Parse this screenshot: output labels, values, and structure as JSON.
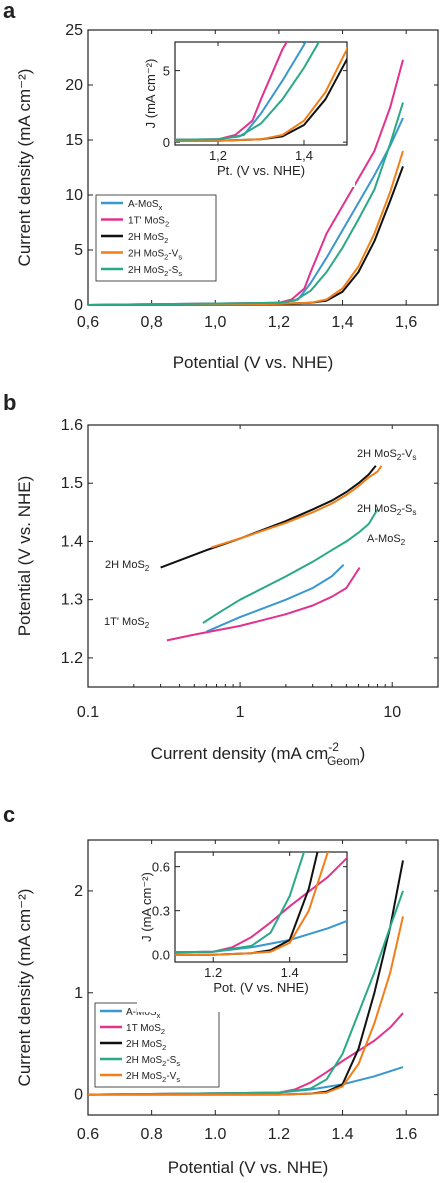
{
  "colors": {
    "A-MoSx": "#3a97cf",
    "1T-MoS2": "#e0338e",
    "2H-MoS2": "#111111",
    "2H-MoS2-Vs": "#f07f1a",
    "2H-MoS2-Ss": "#2aa987"
  },
  "chart_data": [
    {
      "id": "a",
      "type": "line",
      "panel_label": "a",
      "xlabel": "Potential (V vs. NHE)",
      "ylabel": "Current density (mA cm⁻²)",
      "xlim": [
        0.6,
        1.7
      ],
      "ylim": [
        0,
        25
      ],
      "xticks": [
        "0,6",
        "0,8",
        "1,0",
        "1,2",
        "1,4",
        "1,6"
      ],
      "yticks": [
        "0",
        "5",
        "10",
        "15",
        "20",
        "25"
      ],
      "legend_position": "lower-left",
      "series": [
        {
          "name": "A-MoSx",
          "color_key": "A-MoSx",
          "x": [
            0.6,
            1.2,
            1.26,
            1.3,
            1.35,
            1.4,
            1.45,
            1.5,
            1.55,
            1.59
          ],
          "y": [
            0,
            0.2,
            0.5,
            2.0,
            4.3,
            6.8,
            9.3,
            11.8,
            14.5,
            17
          ]
        },
        {
          "name": "1T' MoS2",
          "color_key": "1T-MoS2",
          "x": [
            0.6,
            1.2,
            1.24,
            1.28,
            1.3,
            1.35,
            1.4,
            1.45,
            1.5,
            1.55,
            1.59
          ],
          "y": [
            0,
            0.2,
            0.5,
            1.5,
            3.0,
            6.5,
            9.0,
            11.5,
            14.0,
            18.0,
            22.3
          ]
        },
        {
          "name": "2H MoS2",
          "color_key": "2H-MoS2",
          "x": [
            0.6,
            1.2,
            1.3,
            1.35,
            1.4,
            1.45,
            1.5,
            1.55,
            1.59
          ],
          "y": [
            0,
            0.1,
            0.2,
            0.4,
            1.2,
            3.0,
            5.8,
            9.5,
            12.6
          ]
        },
        {
          "name": "2H MoS2-Vs",
          "color_key": "2H-MoS2-Vs",
          "x": [
            0.6,
            1.2,
            1.3,
            1.35,
            1.4,
            1.45,
            1.5,
            1.55,
            1.59
          ],
          "y": [
            0,
            0.1,
            0.2,
            0.5,
            1.5,
            3.5,
            6.5,
            10.3,
            14.0
          ]
        },
        {
          "name": "2H MoS2-Ss",
          "color_key": "2H-MoS2-Ss",
          "x": [
            0.6,
            1.2,
            1.25,
            1.3,
            1.35,
            1.4,
            1.45,
            1.5,
            1.55,
            1.59
          ],
          "y": [
            0,
            0.2,
            0.4,
            1.3,
            3.0,
            5.2,
            7.8,
            10.5,
            14.7,
            18.4
          ]
        }
      ],
      "inset": {
        "xlabel": "Pt. (V vs. NHE)",
        "ylabel": "J (mA cm⁻²)",
        "xlim": [
          1.1,
          1.5
        ],
        "ylim": [
          -0.2,
          7
        ],
        "xticks": [
          "1,2",
          "1,4"
        ],
        "yticks": [
          "0",
          "5"
        ]
      }
    },
    {
      "id": "b",
      "type": "line",
      "panel_label": "b",
      "xlabel": "Current density (mA cm",
      "xlabel_sup": "-2",
      "xlabel_sub": "Geom",
      "xlabel_end": ")",
      "ylabel": "Potential (V vs. NHE)",
      "xscale": "log",
      "xlim": [
        0.1,
        20
      ],
      "ylim": [
        1.15,
        1.6
      ],
      "xticks": [
        "0.1",
        "1",
        "10"
      ],
      "yticks": [
        "1.2",
        "1.3",
        "1.4",
        "1.5",
        "1.6"
      ],
      "annotations": [
        "2H MoS2-VS",
        "2H MoS2-SS",
        "A-MoS2",
        "2H MoS2",
        "1T' MoS2"
      ],
      "series": [
        {
          "name": "2H MoS2",
          "color_key": "2H-MoS2",
          "x": [
            0.3,
            0.6,
            1,
            2,
            3,
            4,
            5,
            6,
            7,
            7.8
          ],
          "y": [
            1.355,
            1.385,
            1.405,
            1.435,
            1.455,
            1.47,
            1.485,
            1.5,
            1.515,
            1.53
          ]
        },
        {
          "name": "2H MoS2-Vs",
          "color_key": "2H-MoS2-Vs",
          "x": [
            0.65,
            1,
            2,
            3,
            4,
            5,
            6,
            7,
            8,
            8.5
          ],
          "y": [
            1.39,
            1.405,
            1.432,
            1.45,
            1.465,
            1.48,
            1.495,
            1.51,
            1.52,
            1.53
          ]
        },
        {
          "name": "2H MoS2-Ss",
          "color_key": "2H-MoS2-Ss",
          "x": [
            0.57,
            0.7,
            1,
            2,
            3,
            4,
            5,
            6,
            7,
            8
          ],
          "y": [
            1.26,
            1.275,
            1.3,
            1.34,
            1.365,
            1.385,
            1.4,
            1.415,
            1.43,
            1.455
          ]
        },
        {
          "name": "A-MoS2",
          "color_key": "A-MoSx",
          "x": [
            0.6,
            1,
            2,
            3,
            4,
            4.8
          ],
          "y": [
            1.245,
            1.27,
            1.3,
            1.32,
            1.34,
            1.36
          ]
        },
        {
          "name": "1T' MoS2",
          "color_key": "1T-MoS2",
          "x": [
            0.33,
            0.5,
            1,
            2,
            3,
            4,
            5,
            6.1
          ],
          "y": [
            1.23,
            1.24,
            1.255,
            1.275,
            1.29,
            1.305,
            1.32,
            1.355
          ]
        }
      ]
    },
    {
      "id": "c",
      "type": "line",
      "panel_label": "c",
      "xlabel": "Potential (V vs. NHE)",
      "ylabel": "Current density (mA cm⁻²)",
      "xlim": [
        0.6,
        1.7
      ],
      "ylim": [
        -0.2,
        2.5
      ],
      "xticks": [
        "0.6",
        "0.8",
        "1.0",
        "1.2",
        "1.4",
        "1.6"
      ],
      "yticks": [
        "0",
        "1",
        "2"
      ],
      "legend_position": "lower-left",
      "series": [
        {
          "name": "A-MoSx",
          "color_key": "A-MoSx",
          "x": [
            0.6,
            1.2,
            1.3,
            1.4,
            1.5,
            1.59
          ],
          "y": [
            0,
            0.02,
            0.05,
            0.1,
            0.18,
            0.27
          ]
        },
        {
          "name": "1T MoS2",
          "color_key": "1T-MoS2",
          "x": [
            0.6,
            1.2,
            1.25,
            1.3,
            1.35,
            1.4,
            1.45,
            1.5,
            1.55,
            1.59
          ],
          "y": [
            0,
            0.02,
            0.05,
            0.12,
            0.22,
            0.33,
            0.43,
            0.53,
            0.66,
            0.8
          ]
        },
        {
          "name": "2H MoS2",
          "color_key": "2H-MoS2",
          "x": [
            0.6,
            1.2,
            1.3,
            1.35,
            1.4,
            1.45,
            1.5,
            1.55,
            1.59
          ],
          "y": [
            0,
            0.0,
            0.01,
            0.03,
            0.1,
            0.45,
            1.0,
            1.65,
            2.3
          ]
        },
        {
          "name": "2H MoS2-Ss",
          "color_key": "2H-MoS2-Ss",
          "x": [
            0.6,
            1.2,
            1.3,
            1.35,
            1.4,
            1.45,
            1.5,
            1.55,
            1.59
          ],
          "y": [
            0,
            0.02,
            0.06,
            0.15,
            0.4,
            0.8,
            1.2,
            1.65,
            2.0
          ]
        },
        {
          "name": "2H MoS2-Vs",
          "color_key": "2H-MoS2-Vs",
          "x": [
            0.6,
            1.2,
            1.3,
            1.35,
            1.4,
            1.45,
            1.5,
            1.55,
            1.59
          ],
          "y": [
            0,
            0.0,
            0.01,
            0.02,
            0.08,
            0.3,
            0.7,
            1.2,
            1.75
          ]
        }
      ],
      "inset": {
        "xlabel": "Pot. (V vs. NHE)",
        "ylabel": "J (mA cm⁻²)",
        "xlim": [
          1.1,
          1.55
        ],
        "ylim": [
          -0.05,
          0.7
        ],
        "xticks": [
          "1.2",
          "1.4"
        ],
        "yticks": [
          "0.0",
          "0.3",
          "0.6"
        ]
      }
    }
  ]
}
